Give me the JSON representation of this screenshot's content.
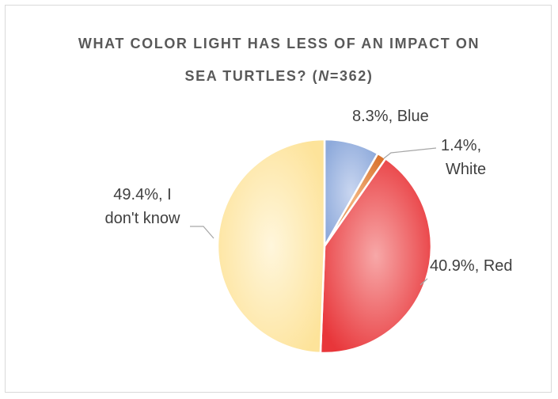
{
  "chart_data": {
    "type": "pie",
    "title_line1": "WHAT COLOR LIGHT HAS LESS OF AN IMPACT ON",
    "title_line2_prefix": "SEA TURTLES? (",
    "title_line2_n": "N",
    "title_line2_suffix": "=362)",
    "slices": [
      {
        "label": "Blue",
        "value": 8.3,
        "color": "#8eaadb",
        "label_lines": [
          "8.3%, Blue"
        ]
      },
      {
        "label": "White",
        "value": 1.4,
        "color": "#e07b39",
        "label_lines": [
          "1.4%,",
          "White"
        ]
      },
      {
        "label": "Red",
        "value": 40.9,
        "color": "#ef4444",
        "label_lines": [
          "40.9%, Red"
        ]
      },
      {
        "label": "I don't know",
        "value": 49.4,
        "color": "#ffe699",
        "label_lines": [
          "49.4%, I",
          "don't know"
        ]
      }
    ],
    "legend": "none"
  }
}
